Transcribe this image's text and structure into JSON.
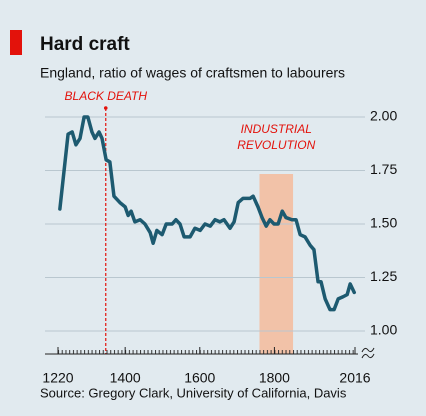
{
  "chart_data": {
    "type": "line",
    "title": "Hard craft",
    "subtitle": "England, ratio of wages of craftsmen to labourers",
    "source": "Source: Gregory Clark, University of California, Davis",
    "x": [
      1225,
      1247,
      1258,
      1268,
      1279,
      1290,
      1300,
      1311,
      1319,
      1330,
      1338,
      1349,
      1359,
      1370,
      1386,
      1400,
      1408,
      1416,
      1426,
      1440,
      1453,
      1467,
      1475,
      1485,
      1499,
      1510,
      1526,
      1536,
      1547,
      1558,
      1574,
      1587,
      1601,
      1614,
      1628,
      1641,
      1654,
      1665,
      1681,
      1692,
      1703,
      1716,
      1735,
      1743,
      1756,
      1767,
      1778,
      1788,
      1799,
      1810,
      1821,
      1831,
      1847,
      1858,
      1869,
      1882,
      1896,
      1906,
      1917,
      1925,
      1936,
      1949,
      1960,
      1971,
      1984,
      1995,
      2003,
      2014
    ],
    "series": [
      {
        "name": "Ratio of wages",
        "color": "#1d5a70",
        "values": [
          1.57,
          1.92,
          1.93,
          1.87,
          1.9,
          2.0,
          2.0,
          1.93,
          1.9,
          1.93,
          1.9,
          1.8,
          1.79,
          1.63,
          1.6,
          1.58,
          1.54,
          1.56,
          1.51,
          1.52,
          1.5,
          1.46,
          1.41,
          1.47,
          1.45,
          1.5,
          1.5,
          1.52,
          1.5,
          1.44,
          1.44,
          1.48,
          1.47,
          1.5,
          1.49,
          1.52,
          1.51,
          1.52,
          1.48,
          1.51,
          1.6,
          1.62,
          1.62,
          1.63,
          1.58,
          1.53,
          1.49,
          1.52,
          1.5,
          1.5,
          1.56,
          1.53,
          1.52,
          1.52,
          1.45,
          1.44,
          1.4,
          1.38,
          1.23,
          1.23,
          1.15,
          1.1,
          1.1,
          1.15,
          1.16,
          1.17,
          1.22,
          1.18
        ]
      }
    ],
    "xlim": [
      1220,
      2016
    ],
    "xticks": [
      1220,
      1400,
      1600,
      1800,
      2016
    ],
    "ylim": [
      1,
      2
    ],
    "yticks": [
      {
        "value": 1,
        "label": "1.00"
      },
      {
        "value": 1.25,
        "label": "1.25"
      },
      {
        "value": 1.5,
        "label": "1.50"
      },
      {
        "value": 1.75,
        "label": "1.75"
      },
      {
        "value": 2,
        "label": "2.00"
      }
    ],
    "grid": true,
    "annotations": [
      {
        "text": "BLACK DEATH",
        "x": 1348,
        "color": "#e3120b"
      },
      {
        "text": [
          "INDUSTRIAL",
          "REVOLUTION"
        ],
        "start": 1760,
        "end": 1850,
        "color": "#e3120b",
        "fill": "#f2c2a8"
      }
    ]
  }
}
